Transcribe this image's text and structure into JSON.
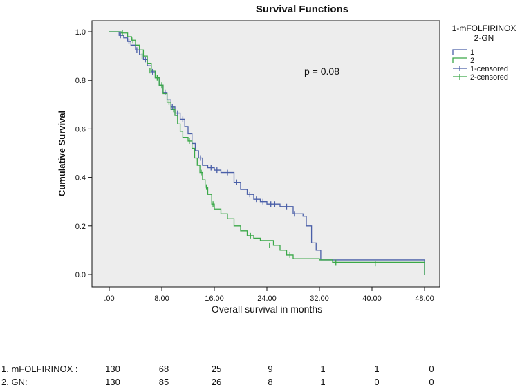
{
  "chart_data": {
    "type": "line",
    "title": "Survival Functions",
    "xlabel": "Overall survival in months",
    "ylabel": "Cumulative Survival",
    "xlim": [
      0,
      48
    ],
    "ylim": [
      0,
      1
    ],
    "x_ticks": [
      ".00",
      "8.00",
      "16.00",
      "24.00",
      "32.00",
      "40.00",
      "48.00"
    ],
    "y_ticks": [
      "0.0",
      "0.2",
      "0.4",
      "0.6",
      "0.8",
      "1.0"
    ],
    "annotation": "p = 0.08",
    "legend": {
      "title_line1": "1-mFOLFIRINOX",
      "title_line2": "2-GN",
      "placement": "right",
      "entries": [
        "1",
        "2",
        "1-censored",
        "2-censored"
      ]
    },
    "plot_background": "#ededed",
    "series": [
      {
        "name": "1",
        "color": "#4a5fa8",
        "steps": [
          [
            0,
            1.0
          ],
          [
            1.5,
            0.985
          ],
          [
            2.2,
            0.975
          ],
          [
            2.8,
            0.96
          ],
          [
            3.3,
            0.945
          ],
          [
            4.0,
            0.925
          ],
          [
            4.6,
            0.905
          ],
          [
            5.2,
            0.885
          ],
          [
            5.8,
            0.86
          ],
          [
            6.4,
            0.835
          ],
          [
            7.0,
            0.81
          ],
          [
            7.6,
            0.78
          ],
          [
            8.2,
            0.75
          ],
          [
            8.8,
            0.72
          ],
          [
            9.4,
            0.69
          ],
          [
            10.0,
            0.665
          ],
          [
            10.8,
            0.64
          ],
          [
            11.5,
            0.61
          ],
          [
            12.0,
            0.58
          ],
          [
            12.6,
            0.54
          ],
          [
            13.1,
            0.51
          ],
          [
            13.6,
            0.48
          ],
          [
            14.2,
            0.45
          ],
          [
            15.0,
            0.44
          ],
          [
            16.0,
            0.43
          ],
          [
            17.0,
            0.42
          ],
          [
            19.0,
            0.38
          ],
          [
            20.0,
            0.35
          ],
          [
            21.0,
            0.33
          ],
          [
            22.0,
            0.31
          ],
          [
            23.0,
            0.3
          ],
          [
            24.0,
            0.29
          ],
          [
            26.0,
            0.28
          ],
          [
            28.0,
            0.25
          ],
          [
            29.5,
            0.24
          ],
          [
            30.0,
            0.2
          ],
          [
            30.8,
            0.13
          ],
          [
            31.5,
            0.1
          ],
          [
            32.2,
            0.06
          ],
          [
            48,
            0.06
          ],
          [
            48,
            0.0
          ]
        ],
        "censored": [
          [
            1.7,
            0.985
          ],
          [
            3.0,
            0.96
          ],
          [
            4.2,
            0.925
          ],
          [
            5.5,
            0.885
          ],
          [
            6.6,
            0.835
          ],
          [
            8.5,
            0.75
          ],
          [
            9.6,
            0.69
          ],
          [
            10.4,
            0.665
          ],
          [
            11.2,
            0.64
          ],
          [
            13.9,
            0.48
          ],
          [
            15.5,
            0.44
          ],
          [
            16.4,
            0.43
          ],
          [
            18.0,
            0.42
          ],
          [
            19.4,
            0.38
          ],
          [
            21.4,
            0.33
          ],
          [
            22.4,
            0.31
          ],
          [
            23.4,
            0.3
          ],
          [
            24.6,
            0.29
          ],
          [
            25.2,
            0.29
          ],
          [
            27.0,
            0.28
          ],
          [
            28.2,
            0.25
          ]
        ]
      },
      {
        "name": "2",
        "color": "#3aa848",
        "steps": [
          [
            0,
            1.0
          ],
          [
            1.8,
            0.995
          ],
          [
            2.8,
            0.98
          ],
          [
            3.4,
            0.965
          ],
          [
            4.0,
            0.945
          ],
          [
            4.6,
            0.925
          ],
          [
            5.2,
            0.9
          ],
          [
            5.8,
            0.87
          ],
          [
            6.4,
            0.84
          ],
          [
            7.0,
            0.81
          ],
          [
            7.6,
            0.78
          ],
          [
            8.2,
            0.745
          ],
          [
            8.8,
            0.71
          ],
          [
            9.4,
            0.68
          ],
          [
            10.0,
            0.655
          ],
          [
            10.4,
            0.62
          ],
          [
            10.8,
            0.59
          ],
          [
            11.2,
            0.565
          ],
          [
            12.0,
            0.55
          ],
          [
            12.6,
            0.52
          ],
          [
            13.0,
            0.48
          ],
          [
            13.4,
            0.45
          ],
          [
            13.8,
            0.42
          ],
          [
            14.2,
            0.39
          ],
          [
            14.6,
            0.36
          ],
          [
            15.0,
            0.33
          ],
          [
            15.6,
            0.29
          ],
          [
            16.0,
            0.27
          ],
          [
            17.0,
            0.25
          ],
          [
            18.0,
            0.23
          ],
          [
            19.0,
            0.2
          ],
          [
            20.0,
            0.18
          ],
          [
            21.0,
            0.16
          ],
          [
            22.0,
            0.15
          ],
          [
            23.0,
            0.14
          ],
          [
            25.0,
            0.12
          ],
          [
            26.0,
            0.1
          ],
          [
            27.0,
            0.08
          ],
          [
            28.0,
            0.065
          ],
          [
            32.0,
            0.06
          ],
          [
            34.0,
            0.05
          ],
          [
            48,
            0.045
          ],
          [
            48,
            0.0
          ]
        ],
        "censored": [
          [
            2.0,
            0.995
          ],
          [
            3.6,
            0.965
          ],
          [
            5.0,
            0.9
          ],
          [
            6.2,
            0.84
          ],
          [
            7.3,
            0.81
          ],
          [
            8.0,
            0.78
          ],
          [
            9.1,
            0.71
          ],
          [
            9.8,
            0.68
          ],
          [
            12.2,
            0.55
          ],
          [
            14.0,
            0.42
          ],
          [
            14.8,
            0.36
          ],
          [
            15.8,
            0.29
          ],
          [
            21.5,
            0.16
          ],
          [
            24.4,
            0.12
          ],
          [
            27.5,
            0.08
          ],
          [
            34.5,
            0.05
          ],
          [
            40.5,
            0.045
          ]
        ]
      }
    ]
  },
  "risk_table": {
    "rows": [
      {
        "label": "1. mFOLFIRINOX :",
        "values": [
          "130",
          "68",
          "25",
          "9",
          "1",
          "1",
          "0"
        ]
      },
      {
        "label": "2. GN:",
        "values": [
          "130",
          "85",
          "26",
          "8",
          "1",
          "0",
          "0"
        ]
      }
    ]
  }
}
